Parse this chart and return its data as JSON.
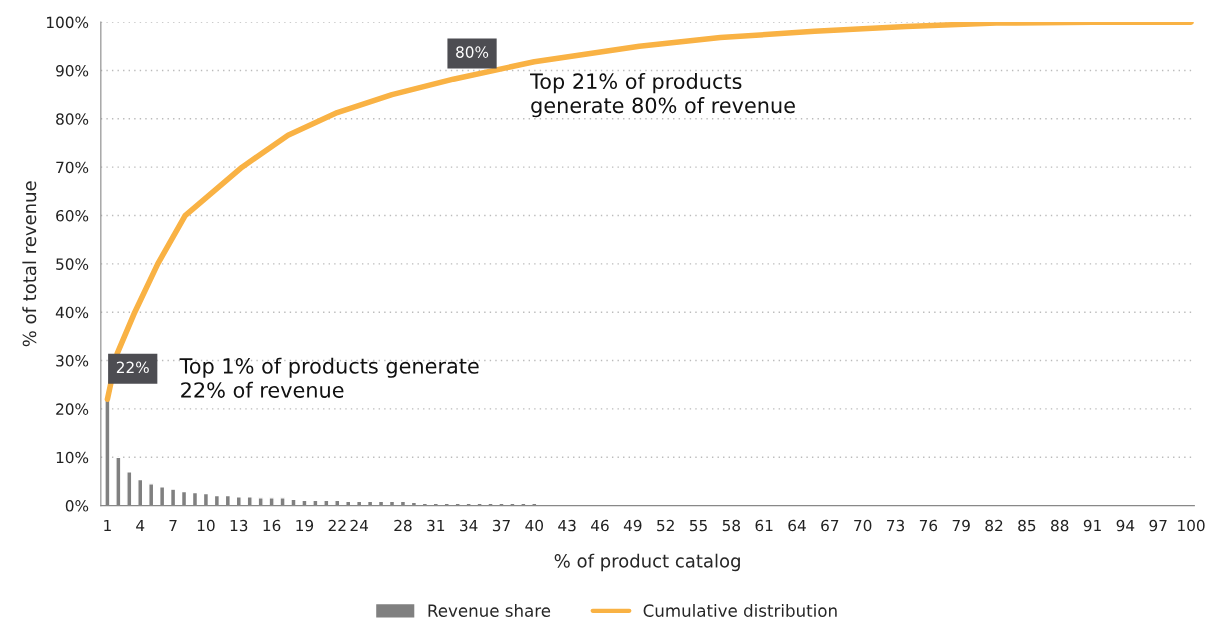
{
  "chart_data": {
    "type": "bar",
    "xlabel": "% of product catalog",
    "ylabel": "% of total revenue",
    "series": [
      {
        "name": "Revenue share",
        "color": "#808080",
        "x": [
          1,
          2,
          3,
          4,
          5,
          6,
          7,
          8,
          9,
          10,
          11,
          12,
          13,
          14,
          15,
          16,
          17,
          18,
          19,
          20,
          21,
          22,
          23,
          24,
          25,
          26,
          27,
          28,
          29,
          30,
          31,
          32,
          33,
          34,
          35,
          36,
          37,
          38,
          39,
          40
        ],
        "values": [
          22,
          10,
          7,
          5.4,
          4.5,
          3.9,
          3.4,
          2.9,
          2.7,
          2.5,
          2.1,
          2.1,
          1.8,
          1.8,
          1.6,
          1.6,
          1.6,
          1.3,
          1.1,
          1.1,
          1.1,
          1.1,
          0.9,
          0.9,
          0.9,
          0.9,
          0.9,
          0.9,
          0.7,
          0.5,
          0.5,
          0.5,
          0.5,
          0.5,
          0.5,
          0.5,
          0.5,
          0.5,
          0.5,
          0.5
        ]
      },
      {
        "name": "Cumulative distribution",
        "type": "line",
        "color": "#f9b244",
        "x": [
          1,
          1.9,
          3.5,
          5.6,
          8.1,
          13.3,
          17.5,
          22,
          27,
          32.6,
          40,
          49.6,
          57,
          65.6,
          74,
          82.2,
          91,
          100
        ],
        "values": [
          22,
          31.5,
          40,
          50,
          60,
          70,
          76.6,
          81.3,
          85,
          88.2,
          91.8,
          95,
          96.8,
          98.1,
          99.1,
          99.8,
          100,
          100
        ]
      }
    ],
    "xlim": [
      0.4,
      100.3
    ],
    "xticks": [
      1,
      4,
      7,
      10,
      13,
      16,
      19,
      22,
      24,
      28,
      31,
      34,
      37,
      40,
      43,
      46,
      49,
      52,
      55,
      58,
      61,
      64,
      67,
      70,
      73,
      76,
      79,
      82,
      85,
      88,
      91,
      94,
      97,
      100
    ],
    "ylim": [
      0,
      100
    ],
    "yticks": [
      {
        "value": 0,
        "label": "0%"
      },
      {
        "value": 10,
        "label": "10%"
      },
      {
        "value": 20,
        "label": "20%"
      },
      {
        "value": 30,
        "label": "30%"
      },
      {
        "value": 40,
        "label": "40%"
      },
      {
        "value": 50,
        "label": "50%"
      },
      {
        "value": 60,
        "label": "60%"
      },
      {
        "value": 70,
        "label": "70%"
      },
      {
        "value": 80,
        "label": "80%"
      },
      {
        "value": 90,
        "label": "90%"
      },
      {
        "value": 100,
        "label": "100%"
      }
    ],
    "grid": "y",
    "legend": "bottom",
    "annotations": [
      {
        "text": "22%",
        "x": 1,
        "y": 22
      },
      "Top 1% of products generate\n22% of revenue",
      {
        "text": "80%",
        "x": 32,
        "y": 87.2
      },
      "Top 21% of products\ngenerate 80% of revenue"
    ]
  }
}
